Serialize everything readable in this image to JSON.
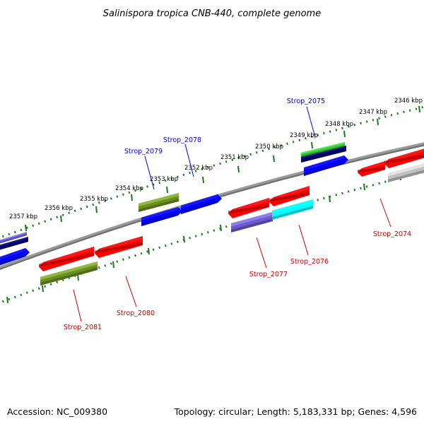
{
  "title": "Salinispora tropica CNB-440, complete genome",
  "accession": "Accession: NC_009380",
  "topology": "Topology: circular; Length: 5,183,331 bp; Genes: 4,596",
  "kbp_ticks": [
    "2346 kbp",
    "2347 kbp",
    "2348 kbp",
    "2349 kbp",
    "2350 kbp",
    "2351 kbp",
    "2352 kbp",
    "2353 kbp",
    "2354 kbp",
    "2355 kbp",
    "2356 kbp",
    "2357 kbp"
  ],
  "gene_labels": {
    "strop_2074": "Strop_2074",
    "strop_2075": "Strop_2075",
    "strop_2076": "Strop_2076",
    "strop_2077": "Strop_2077",
    "strop_2078": "Strop_2078",
    "strop_2079": "Strop_2079",
    "strop_2080": "Strop_2080",
    "strop_2081": "Strop_2081"
  },
  "colors": {
    "forward_label": "#0000cc",
    "reverse_label": "#cc0000",
    "tick": "#1b7a1b",
    "backbone": "#808080",
    "red": "#ff0000",
    "blue": "#0000ff",
    "navy": "#000066",
    "olive": "#6b8e23",
    "green": "#33cc33",
    "cyan": "#00ffff",
    "slate": "#6a5acd",
    "grey": "#c0c0c0"
  }
}
